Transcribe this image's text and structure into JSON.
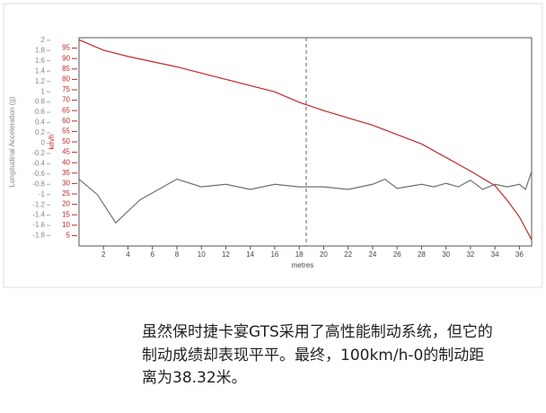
{
  "chart_data": {
    "type": "line",
    "y_label": "Longitudinal Acceleration (g)",
    "y2_label": "km/h",
    "x_label": "metres",
    "xlim": [
      0,
      37
    ],
    "xticks": [
      2,
      4,
      6,
      8,
      10,
      12,
      14,
      16,
      18,
      20,
      22,
      24,
      26,
      28,
      30,
      32,
      34,
      36
    ],
    "ylim": [
      -2,
      2.05
    ],
    "yticks": [
      2,
      1.8,
      1.6,
      1.4,
      1.2,
      1,
      0.8,
      0.6,
      0.4,
      0.2,
      0,
      -0.2,
      -0.4,
      -0.6,
      -0.8,
      -1,
      -1.2,
      -1.4,
      -1.6,
      -1.8
    ],
    "y2lim": [
      0,
      100
    ],
    "y2ticks": [
      95,
      90,
      85,
      80,
      75,
      70,
      65,
      60,
      55,
      50,
      45,
      40,
      35,
      30,
      25,
      20,
      15,
      10,
      5
    ],
    "series": [
      {
        "color": "#c0282a",
        "axis": "y2",
        "x": [
          0,
          2,
          4,
          8,
          12,
          16,
          18,
          20,
          24,
          28,
          32,
          34,
          35,
          36,
          37
        ],
        "values": [
          99,
          94,
          91,
          86,
          80,
          74,
          69,
          65,
          58,
          49,
          36,
          29,
          22,
          14,
          3
        ]
      },
      {
        "color": "#707070",
        "axis": "y",
        "x": [
          0,
          1.5,
          3,
          5,
          8,
          10,
          12,
          14,
          16,
          18,
          20,
          22,
          24,
          25,
          26,
          28,
          29,
          30,
          31,
          32,
          33,
          34,
          35,
          36,
          36.5,
          37
        ],
        "values": [
          -0.7,
          -1.0,
          -1.55,
          -1.1,
          -0.7,
          -0.85,
          -0.8,
          -0.9,
          -0.8,
          -0.85,
          -0.85,
          -0.9,
          -0.8,
          -0.7,
          -0.88,
          -0.8,
          -0.85,
          -0.78,
          -0.85,
          -0.72,
          -0.9,
          -0.8,
          -0.85,
          -0.8,
          -0.9,
          -0.55
        ]
      }
    ]
  },
  "caption": {
    "lines": [
      "虽然保时捷卡宴GTS采用了高性能制动系统，但它的",
      "制动成绩却表现平平。最终，100km/h-0的制动距",
      "离为38.32米。"
    ]
  }
}
